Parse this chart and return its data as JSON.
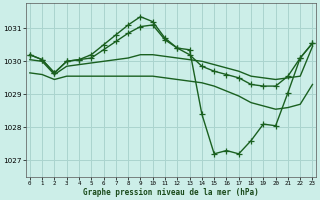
{
  "title": "Graphe pression niveau de la mer (hPa)",
  "bg_color": "#cceee8",
  "grid_color": "#aad4ce",
  "line_color": "#1a6020",
  "x_ticks": [
    0,
    1,
    2,
    3,
    4,
    5,
    6,
    7,
    8,
    9,
    10,
    11,
    12,
    13,
    14,
    15,
    16,
    17,
    18,
    19,
    20,
    21,
    22,
    23
  ],
  "y_ticks": [
    1027,
    1028,
    1029,
    1030,
    1031
  ],
  "ylim": [
    1026.5,
    1031.75
  ],
  "xlim": [
    -0.3,
    23.3
  ],
  "s1_x": [
    0,
    1,
    2,
    3,
    4,
    5,
    6,
    7,
    8,
    9,
    10,
    11,
    12,
    13,
    14,
    15,
    16,
    17,
    18,
    19,
    20,
    21,
    22,
    23
  ],
  "s1_y": [
    1030.2,
    1030.05,
    1029.65,
    1030.0,
    1030.05,
    1030.2,
    1030.5,
    1030.8,
    1031.1,
    1031.35,
    1031.2,
    1030.7,
    1030.4,
    1030.35,
    1028.4,
    1027.2,
    1027.3,
    1027.2,
    1027.6,
    1028.1,
    1028.05,
    1029.05,
    1030.1,
    1030.55
  ],
  "s2_x": [
    0,
    1,
    2,
    3,
    4,
    5,
    6,
    7,
    8,
    9,
    10,
    11,
    12,
    13,
    14,
    15,
    16,
    17,
    18,
    19,
    20,
    21,
    22,
    23
  ],
  "s2_y": [
    1030.2,
    1030.05,
    1029.65,
    1030.0,
    1030.05,
    1030.1,
    1030.35,
    1030.6,
    1030.85,
    1031.05,
    1031.1,
    1030.65,
    1030.4,
    1030.2,
    1029.85,
    1029.7,
    1029.6,
    1029.5,
    1029.3,
    1029.25,
    1029.25,
    1029.55,
    1030.1,
    1030.55
  ],
  "s3_x": [
    0,
    1,
    2,
    3,
    4,
    5,
    6,
    7,
    8,
    9,
    10,
    11,
    12,
    13,
    14,
    15,
    16,
    17,
    18,
    19,
    20,
    21,
    22,
    23
  ],
  "s3_y": [
    1030.05,
    1030.0,
    1029.6,
    1029.85,
    1029.9,
    1029.95,
    1030.0,
    1030.05,
    1030.1,
    1030.2,
    1030.2,
    1030.15,
    1030.1,
    1030.05,
    1030.0,
    1029.9,
    1029.8,
    1029.7,
    1029.55,
    1029.5,
    1029.45,
    1029.5,
    1029.55,
    1030.45
  ],
  "s4_x": [
    0,
    1,
    2,
    3,
    4,
    5,
    6,
    7,
    8,
    9,
    10,
    11,
    12,
    13,
    14,
    15,
    16,
    17,
    18,
    19,
    20,
    21,
    22,
    23
  ],
  "s4_y": [
    1029.65,
    1029.6,
    1029.45,
    1029.55,
    1029.55,
    1029.55,
    1029.55,
    1029.55,
    1029.55,
    1029.55,
    1029.55,
    1029.5,
    1029.45,
    1029.4,
    1029.35,
    1029.25,
    1029.1,
    1028.95,
    1028.75,
    1028.65,
    1028.55,
    1028.6,
    1028.7,
    1029.3
  ]
}
